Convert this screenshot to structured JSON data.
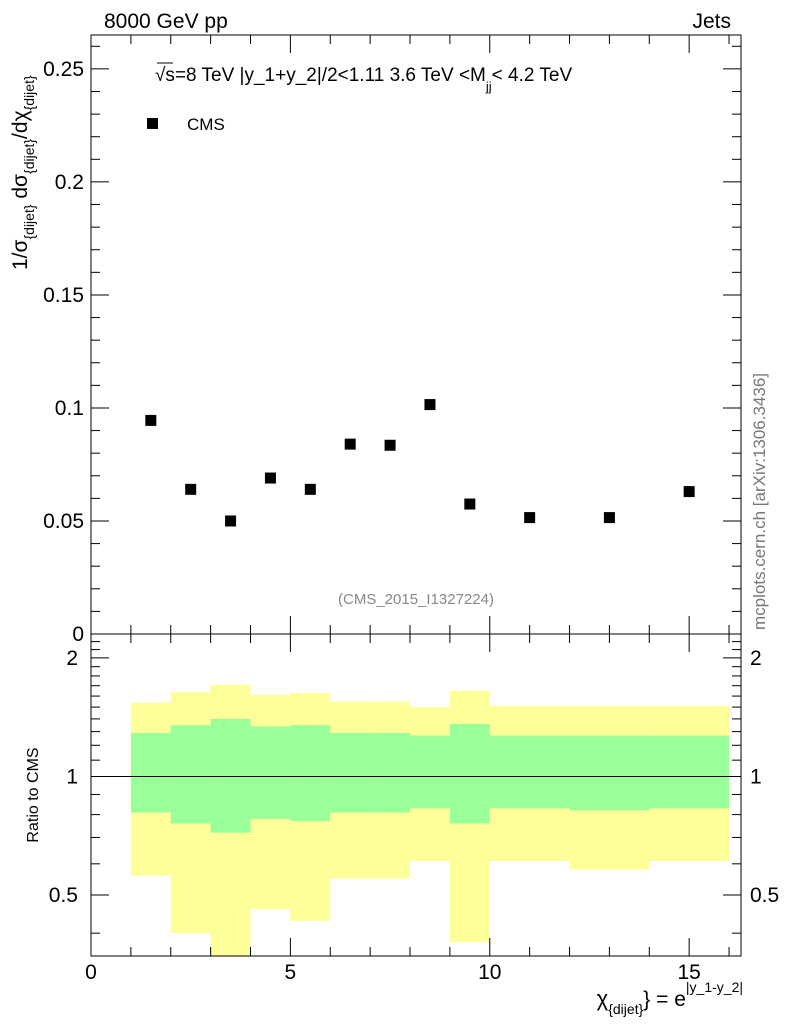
{
  "header": {
    "left": "8000 GeV pp",
    "right": "Jets"
  },
  "side_label": "mcplots.cern.ch [arXiv:1306.3436]",
  "analysis_credit": "(CMS_2015_I1327224)",
  "chart_data": [
    {
      "type": "scatter",
      "annotation": {
        "sqrt": "√s",
        "text": "=8 TeV |y_1+y_2|/2<1.11 3.6 TeV <M",
        "sub": "jj",
        "tail": "< 4.2 TeV"
      },
      "legend": [
        {
          "name": "CMS",
          "marker": "square"
        }
      ],
      "ylabel": {
        "p1": "1/σ",
        "s1": "{dijet}",
        "p2": " dσ",
        "s2": "{dijet}",
        "p3": "/dχ",
        "s3": "{dijet}"
      },
      "xlim": [
        0,
        16.3
      ],
      "ylim": [
        0,
        0.265
      ],
      "yticks": [
        0.05,
        0.1,
        0.15,
        0.2,
        0.25
      ],
      "ytick_labels": [
        "0.05",
        "0.1",
        "0.15",
        "0.2",
        "0.25"
      ],
      "y_bottom_label": "0",
      "series": [
        {
          "name": "CMS",
          "x": [
            1.5,
            2.5,
            3.5,
            4.5,
            5.5,
            6.5,
            7.5,
            8.5,
            9.5,
            11.0,
            13.0,
            15.0
          ],
          "y": [
            0.0945,
            0.064,
            0.05,
            0.069,
            0.064,
            0.084,
            0.0835,
            0.1015,
            0.0575,
            0.0515,
            0.0515,
            0.063
          ]
        }
      ]
    },
    {
      "type": "area",
      "ylabel": "Ratio to CMS",
      "xlabel": {
        "chi": "χ",
        "sub": "{dijet}",
        "eq": "} = e",
        "sup": "|y_1-y_2|"
      },
      "xlim": [
        0,
        16.3
      ],
      "ylim": [
        0.35,
        2.3
      ],
      "xticks": [
        0,
        5,
        10,
        15
      ],
      "xtick_labels": [
        "0",
        "5",
        "10",
        "15"
      ],
      "yticks": [
        0.5,
        1,
        2
      ],
      "ytick_labels": [
        "0.5",
        "1",
        "2"
      ],
      "reference_line": 1,
      "bins": [
        {
          "x0": 1,
          "x1": 2,
          "y_lo": 0.56,
          "y_hi": 1.54,
          "g_lo": 0.81,
          "g_hi": 1.29
        },
        {
          "x0": 2,
          "x1": 3,
          "y_lo": 0.4,
          "y_hi": 1.64,
          "g_lo": 0.76,
          "g_hi": 1.35
        },
        {
          "x0": 3,
          "x1": 4,
          "y_lo": 0.33,
          "y_hi": 1.71,
          "g_lo": 0.72,
          "g_hi": 1.4
        },
        {
          "x0": 4,
          "x1": 5,
          "y_lo": 0.46,
          "y_hi": 1.61,
          "g_lo": 0.78,
          "g_hi": 1.34
        },
        {
          "x0": 5,
          "x1": 6,
          "y_lo": 0.43,
          "y_hi": 1.63,
          "g_lo": 0.77,
          "g_hi": 1.35
        },
        {
          "x0": 6,
          "x1": 7,
          "y_lo": 0.55,
          "y_hi": 1.55,
          "g_lo": 0.81,
          "g_hi": 1.29
        },
        {
          "x0": 7,
          "x1": 8,
          "y_lo": 0.55,
          "y_hi": 1.55,
          "g_lo": 0.81,
          "g_hi": 1.29
        },
        {
          "x0": 8,
          "x1": 9,
          "y_lo": 0.61,
          "y_hi": 1.5,
          "g_lo": 0.83,
          "g_hi": 1.27
        },
        {
          "x0": 9,
          "x1": 10,
          "y_lo": 0.38,
          "y_hi": 1.65,
          "g_lo": 0.76,
          "g_hi": 1.36
        },
        {
          "x0": 10,
          "x1": 12,
          "y_lo": 0.61,
          "y_hi": 1.51,
          "g_lo": 0.83,
          "g_hi": 1.27
        },
        {
          "x0": 12,
          "x1": 14,
          "y_lo": 0.58,
          "y_hi": 1.51,
          "g_lo": 0.82,
          "g_hi": 1.27
        },
        {
          "x0": 14,
          "x1": 16,
          "y_lo": 0.61,
          "y_hi": 1.51,
          "g_lo": 0.83,
          "g_hi": 1.27
        }
      ]
    }
  ],
  "colors": {
    "yellow_band": "#ffff99",
    "green_band": "#99ff99",
    "marker": "#000000",
    "credit": "#888888"
  }
}
